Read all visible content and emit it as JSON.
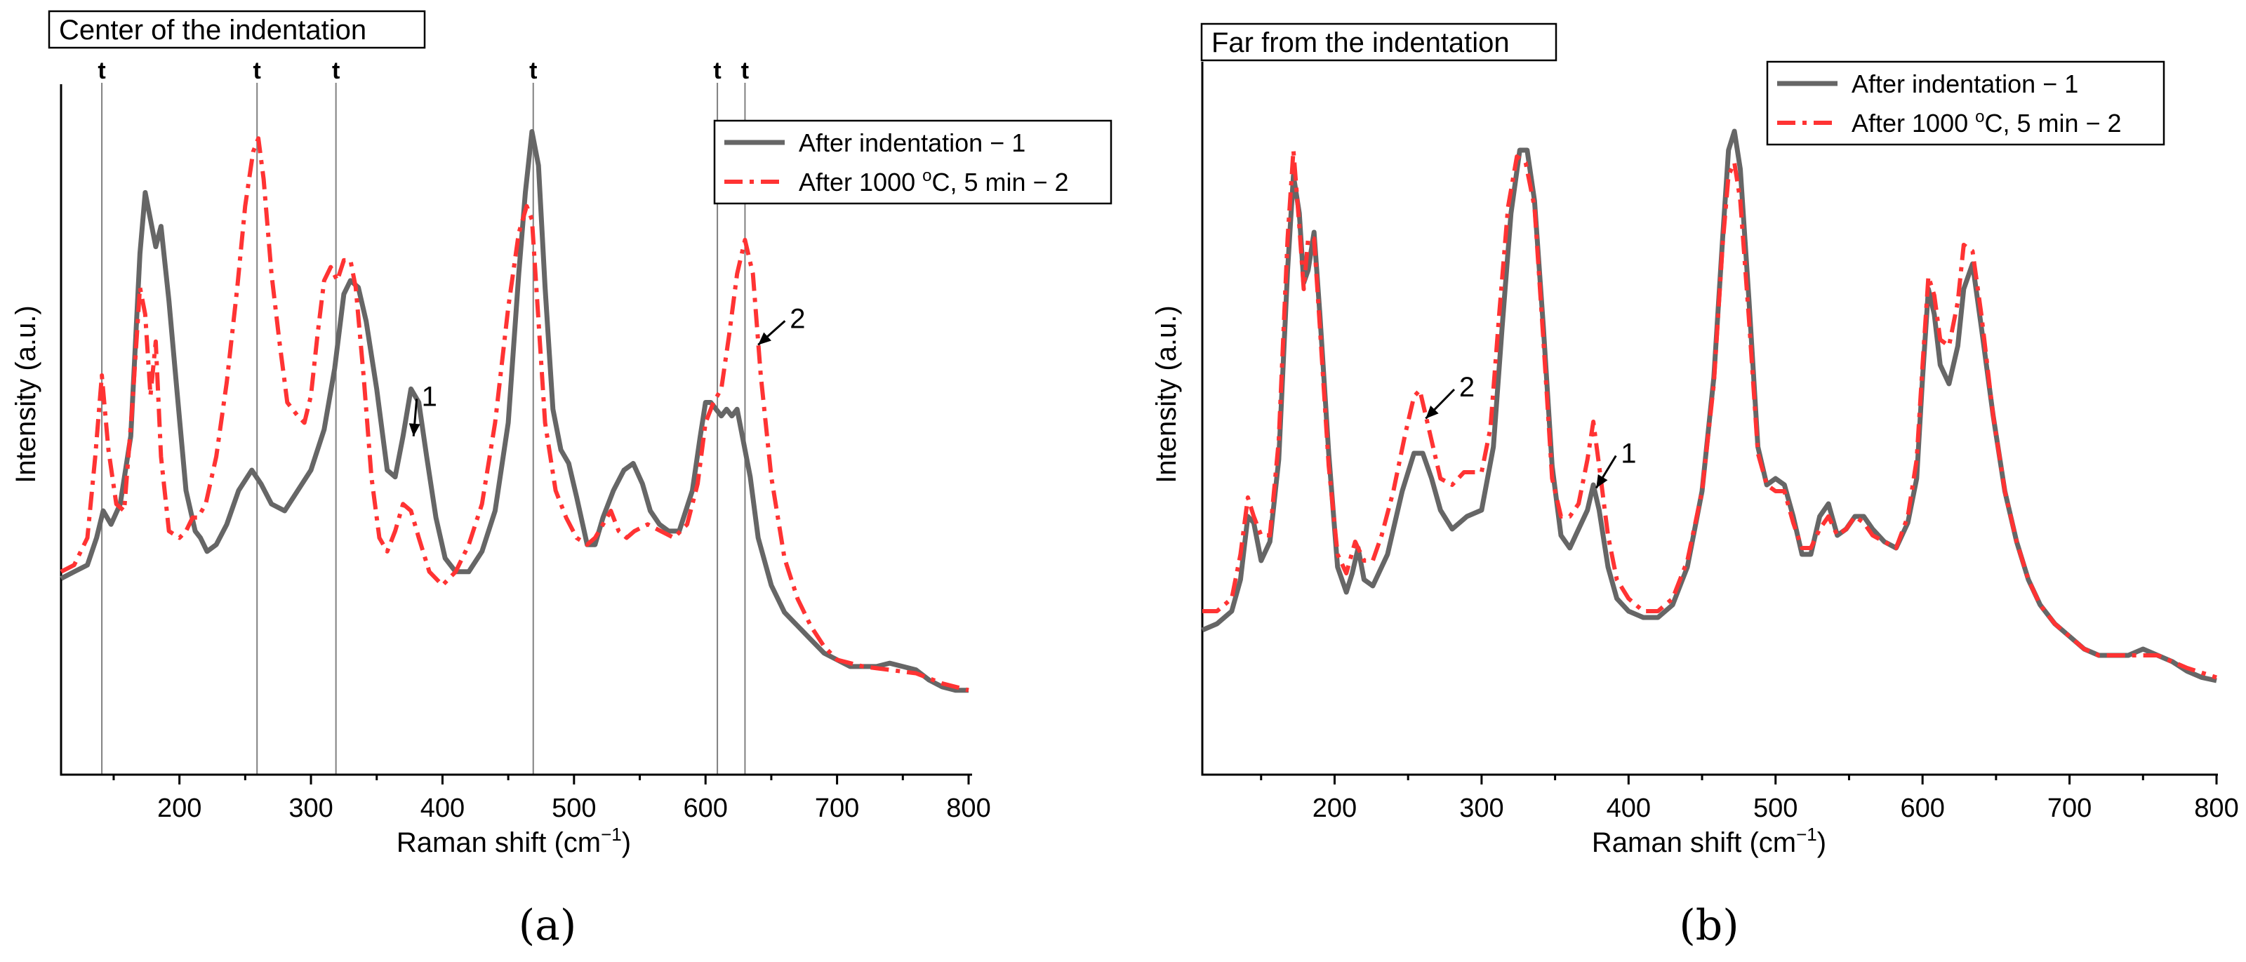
{
  "colors": {
    "series1": "#666666",
    "series2": "#ff3333"
  },
  "chart_data": [
    {
      "panel": "a",
      "panel_label": "(a)",
      "type": "line",
      "title": "Center of the indentation",
      "xlabel": "Raman shift (cm",
      "xlabel_sup": "−1",
      "xlabel_end": ")",
      "ylabel": "Intensity (a.u.)",
      "xlim": [
        110,
        800
      ],
      "ylim": [
        0,
        100
      ],
      "xticks": [
        200,
        300,
        400,
        500,
        600,
        700,
        800
      ],
      "ref_lines": [
        {
          "x": 141,
          "label": "t"
        },
        {
          "x": 259,
          "label": "t"
        },
        {
          "x": 319,
          "label": "t"
        },
        {
          "x": 469,
          "label": "t"
        },
        {
          "x": 609,
          "label": "t"
        },
        {
          "x": 630,
          "label": "t"
        }
      ],
      "annotations": [
        {
          "label": "1",
          "text_x": 390,
          "text_y": 52.5,
          "arrow_x": 378,
          "arrow_y": 48
        },
        {
          "label": "2",
          "text_x": 670,
          "text_y": 64,
          "arrow_x": 640,
          "arrow_y": 61.5
        }
      ],
      "series": [
        {
          "name": "After indentation − 1",
          "legend_text": "After indentation − 1",
          "x": [
            110,
            120,
            130,
            137,
            142,
            148,
            155,
            163,
            170,
            174,
            178,
            182,
            186,
            192,
            198,
            205,
            212,
            216,
            221,
            228,
            236,
            245,
            255,
            262,
            270,
            280,
            290,
            300,
            310,
            318,
            325,
            330,
            336,
            342,
            350,
            358,
            364,
            370,
            376,
            382,
            388,
            395,
            402,
            410,
            420,
            430,
            440,
            450,
            458,
            463,
            468,
            473,
            478,
            484,
            490,
            496,
            502,
            510,
            516,
            522,
            530,
            538,
            545,
            552,
            558,
            565,
            572,
            580,
            590,
            596,
            600,
            604,
            608,
            612,
            616,
            620,
            624,
            628,
            634,
            640,
            650,
            660,
            670,
            680,
            690,
            700,
            710,
            720,
            730,
            740,
            750,
            760,
            770,
            780,
            790,
            800
          ],
          "y": [
            27,
            28,
            29,
            33,
            37,
            35,
            38,
            48,
            75,
            84,
            80,
            76,
            79,
            68,
            55,
            40,
            34,
            33,
            31,
            32,
            35,
            40,
            43,
            41,
            38,
            37,
            40,
            43,
            49,
            58,
            69,
            71,
            70,
            65,
            55,
            43,
            42,
            48,
            55,
            53,
            45,
            36,
            30,
            28,
            28,
            31,
            37,
            50,
            72,
            84,
            93,
            88,
            70,
            52,
            46,
            44,
            39,
            32,
            32,
            36,
            40,
            43,
            44,
            41,
            37,
            35,
            34,
            34,
            40,
            48,
            53,
            53,
            52,
            51,
            52,
            51,
            52,
            48,
            42,
            33,
            26,
            22,
            20,
            18,
            16,
            15,
            14,
            14,
            14,
            14.5,
            14,
            13.5,
            12,
            11,
            10.5,
            10.5
          ]
        },
        {
          "name": "After 1000 °C, 5 min − 2",
          "legend_text_pre": "After 1000 ",
          "legend_text_sup": "o",
          "legend_text_post": "C, 5 min − 2",
          "x": [
            110,
            120,
            130,
            136,
            141,
            146,
            152,
            158,
            164,
            170,
            174,
            178,
            182,
            186,
            192,
            200,
            205,
            210,
            214,
            220,
            228,
            236,
            244,
            250,
            256,
            260,
            264,
            270,
            276,
            282,
            290,
            295,
            300,
            305,
            310,
            315,
            320,
            325,
            330,
            334,
            340,
            346,
            352,
            358,
            364,
            370,
            376,
            382,
            390,
            400,
            410,
            420,
            430,
            440,
            450,
            458,
            464,
            468,
            472,
            478,
            486,
            494,
            502,
            510,
            516,
            522,
            528,
            534,
            540,
            546,
            556,
            566,
            576,
            586,
            594,
            600,
            606,
            612,
            618,
            624,
            630,
            636,
            642,
            650,
            660,
            670,
            680,
            690,
            700,
            720,
            740,
            760,
            780,
            800
          ],
          "y": [
            28,
            29,
            33,
            45,
            57,
            46,
            38,
            37,
            52,
            70,
            66,
            54,
            62,
            45,
            34,
            33,
            34,
            36,
            36,
            38,
            45,
            56,
            70,
            82,
            90,
            92,
            86,
            72,
            62,
            53,
            51,
            50,
            54,
            63,
            71,
            73,
            71,
            74,
            74,
            70,
            57,
            42,
            33,
            31,
            34,
            38,
            37,
            33,
            28,
            26,
            28,
            32,
            38,
            50,
            67,
            78,
            82,
            80,
            68,
            50,
            40,
            36,
            33,
            32,
            33,
            35,
            37,
            34,
            33,
            34,
            35,
            34,
            33,
            35,
            41,
            50,
            53,
            55,
            63,
            72,
            77,
            72,
            57,
            42,
            30,
            24,
            20,
            17,
            15,
            14,
            13.5,
            13,
            11.5,
            10.5
          ]
        }
      ]
    },
    {
      "panel": "b",
      "panel_label": "(b)",
      "type": "line",
      "title": "Far from the indentation",
      "xlabel": "Raman shift (cm",
      "xlabel_sup": "−1",
      "xlabel_end": ")",
      "ylabel": "Intensity (a.u.)",
      "xlim": [
        110,
        800
      ],
      "ylim": [
        0,
        100
      ],
      "xticks": [
        200,
        300,
        400,
        500,
        600,
        700,
        800
      ],
      "ref_lines": [],
      "annotations": [
        {
          "label": "2",
          "text_x": 290,
          "text_y": 55,
          "arrow_x": 262,
          "arrow_y": 51.5
        },
        {
          "label": "1",
          "text_x": 400,
          "text_y": 44.5,
          "arrow_x": 378,
          "arrow_y": 40.5
        }
      ],
      "series": [
        {
          "name": "After indentation − 1",
          "legend_text": "After indentation − 1",
          "x": [
            110,
            120,
            130,
            136,
            141,
            145,
            150,
            156,
            162,
            168,
            172,
            176,
            179,
            182,
            186,
            190,
            196,
            202,
            208,
            212,
            216,
            220,
            226,
            236,
            246,
            254,
            260,
            266,
            272,
            280,
            290,
            300,
            308,
            314,
            320,
            326,
            331,
            336,
            342,
            348,
            354,
            360,
            366,
            372,
            376,
            380,
            386,
            392,
            400,
            410,
            420,
            430,
            440,
            450,
            458,
            464,
            468,
            472,
            476,
            482,
            488,
            494,
            500,
            506,
            512,
            518,
            524,
            530,
            536,
            542,
            548,
            554,
            560,
            566,
            574,
            582,
            590,
            596,
            600,
            604,
            608,
            612,
            618,
            624,
            628,
            634,
            640,
            648,
            656,
            664,
            672,
            680,
            690,
            700,
            710,
            720,
            730,
            740,
            750,
            760,
            770,
            780,
            790,
            800
          ],
          "y": [
            18,
            19,
            21,
            26,
            36,
            35,
            29,
            32,
            45,
            75,
            90,
            84,
            73,
            75,
            81,
            68,
            46,
            28,
            24,
            27,
            31,
            26,
            25,
            30,
            40,
            46,
            46,
            42,
            37,
            34,
            36,
            37,
            47,
            66,
            84,
            94,
            94,
            86,
            66,
            44,
            33,
            31,
            34,
            37,
            41,
            37,
            28,
            23,
            21,
            20,
            20,
            22,
            28,
            40,
            58,
            80,
            94,
            97,
            91,
            70,
            47,
            41,
            42,
            41,
            36,
            30,
            30,
            36,
            38,
            33,
            34,
            36,
            36,
            34,
            32,
            31,
            35,
            42,
            58,
            72,
            68,
            60,
            57,
            63,
            72,
            76,
            66,
            52,
            40,
            32,
            26,
            22,
            19,
            17,
            15,
            14,
            14,
            14,
            15,
            14,
            13,
            11.5,
            10.5,
            10
          ]
        },
        {
          "name": "After 1000 °C, 5 min − 2",
          "legend_text_pre": "After 1000 ",
          "legend_text_sup": "o",
          "legend_text_post": "C, 5 min − 2",
          "x": [
            110,
            120,
            130,
            136,
            141,
            145,
            150,
            156,
            162,
            168,
            172,
            176,
            179,
            182,
            186,
            190,
            196,
            202,
            208,
            214,
            220,
            226,
            232,
            240,
            248,
            254,
            258,
            262,
            266,
            272,
            280,
            288,
            294,
            300,
            306,
            312,
            318,
            324,
            330,
            336,
            342,
            348,
            354,
            360,
            366,
            372,
            376,
            380,
            386,
            392,
            400,
            410,
            420,
            430,
            440,
            450,
            458,
            464,
            468,
            472,
            476,
            482,
            488,
            494,
            500,
            506,
            512,
            518,
            524,
            530,
            536,
            542,
            548,
            554,
            560,
            566,
            574,
            582,
            590,
            596,
            600,
            604,
            608,
            612,
            618,
            624,
            628,
            634,
            640,
            648,
            656,
            664,
            672,
            680,
            690,
            700,
            710,
            720,
            740,
            760,
            780,
            800
          ],
          "y": [
            21,
            21,
            23,
            30,
            39,
            36,
            33,
            33,
            48,
            80,
            94,
            82,
            72,
            80,
            80,
            66,
            44,
            30,
            27,
            32,
            29,
            29,
            33,
            40,
            49,
            55,
            56,
            52,
            48,
            42,
            41,
            43,
            43,
            43,
            50,
            68,
            85,
            93,
            92,
            85,
            64,
            42,
            36,
            36,
            38,
            45,
            51,
            44,
            33,
            26,
            23,
            21,
            21,
            23,
            29,
            40,
            57,
            79,
            90,
            92,
            86,
            67,
            46,
            41,
            40,
            40,
            35,
            31,
            31,
            34,
            36,
            33,
            34,
            36,
            35,
            33,
            32,
            31,
            36,
            45,
            60,
            74,
            71,
            64,
            63,
            70,
            79,
            78,
            68,
            52,
            40,
            32,
            26,
            22,
            19,
            17,
            15,
            14,
            14,
            14,
            12,
            10.5
          ]
        }
      ]
    }
  ]
}
